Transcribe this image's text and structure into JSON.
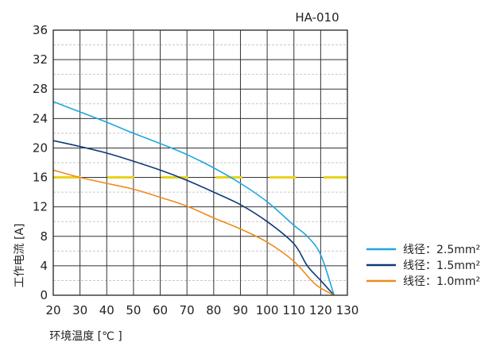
{
  "chart_data": {
    "type": "line",
    "title": "HA-010",
    "xlabel": "环境温度 [℃ ]",
    "ylabel": "工作电流 [A]",
    "xlim": [
      20,
      125
    ],
    "ylim": [
      0,
      36
    ],
    "x_ticks": [
      "20",
      "30",
      "40",
      "50",
      "60",
      "70",
      "80",
      "90",
      "100",
      "110",
      "120",
      "130"
    ],
    "y_ticks": [
      "0",
      "4",
      "8",
      "12",
      "16",
      "20",
      "24",
      "28",
      "32",
      "36"
    ],
    "grid": true,
    "legend_position": "bottom-right",
    "reference_line": {
      "y": 16,
      "color": "#e8d21c",
      "style": "dashed"
    },
    "series": [
      {
        "name": "线径：2.5mm²",
        "color": "#1fa7df",
        "points": [
          [
            20,
            26.3
          ],
          [
            30,
            24.9
          ],
          [
            40,
            23.5
          ],
          [
            50,
            22
          ],
          [
            60,
            20.6
          ],
          [
            70,
            19.1
          ],
          [
            80,
            17.3
          ],
          [
            90,
            15.2
          ],
          [
            100,
            12.7
          ],
          [
            110,
            9.5
          ],
          [
            115,
            8
          ],
          [
            120,
            5.5
          ],
          [
            125,
            0
          ]
        ]
      },
      {
        "name": "线径：1.5mm²",
        "color": "#0d3a7a",
        "points": [
          [
            20,
            21
          ],
          [
            30,
            20.2
          ],
          [
            40,
            19.3
          ],
          [
            50,
            18.2
          ],
          [
            60,
            17
          ],
          [
            70,
            15.6
          ],
          [
            80,
            14
          ],
          [
            90,
            12.3
          ],
          [
            100,
            10
          ],
          [
            110,
            7
          ],
          [
            115,
            4
          ],
          [
            120,
            2
          ],
          [
            125,
            0
          ]
        ]
      },
      {
        "name": "线径：1.0mm²",
        "color": "#f08a1c",
        "points": [
          [
            20,
            17
          ],
          [
            30,
            16
          ],
          [
            40,
            15.2
          ],
          [
            50,
            14.4
          ],
          [
            60,
            13.3
          ],
          [
            70,
            12.1
          ],
          [
            80,
            10.5
          ],
          [
            90,
            9
          ],
          [
            100,
            7.2
          ],
          [
            110,
            4.6
          ],
          [
            118,
            1.5
          ],
          [
            125,
            0
          ]
        ]
      }
    ]
  }
}
